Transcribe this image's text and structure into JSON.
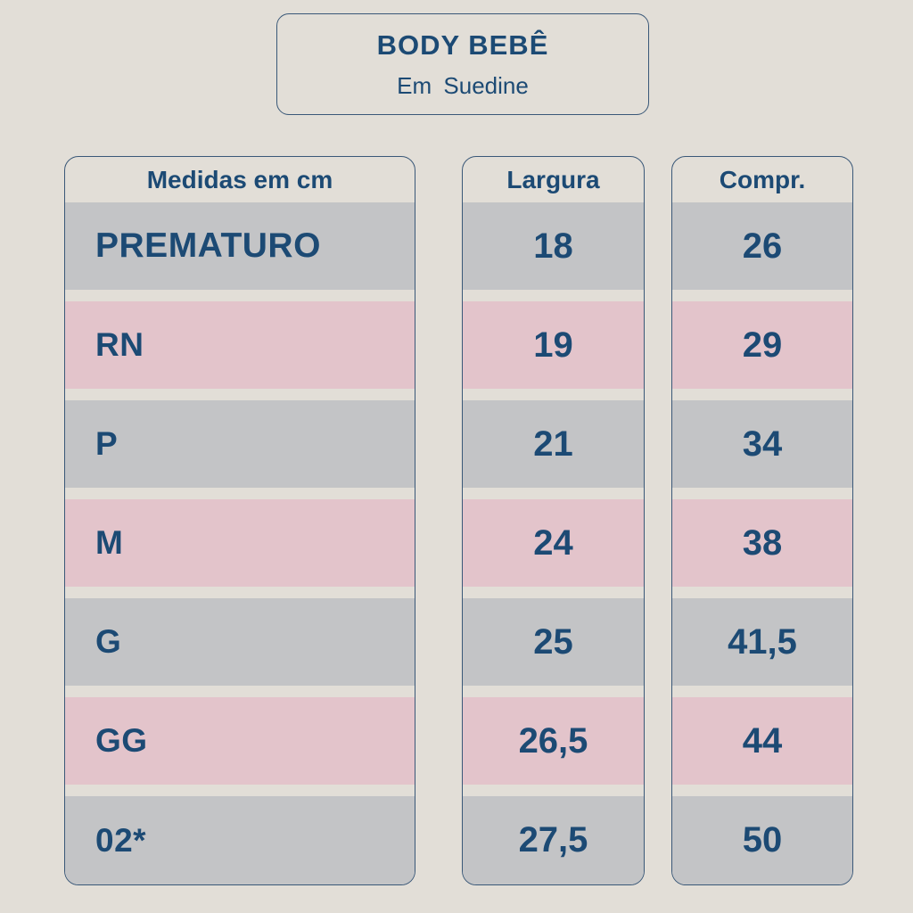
{
  "colors": {
    "background": "#e2ded7",
    "row_gray": "#c3c4c6",
    "row_pink": "#e3c4cb",
    "text_navy": "#1c4a74",
    "border_navy": "#3a5878"
  },
  "title_box": {
    "title": "BODY BEBÊ",
    "subtitle": "Em Suedine"
  },
  "table": {
    "columns": [
      {
        "header": "Medidas em cm",
        "rows": [
          "PREMATURO",
          "RN",
          "P",
          "M",
          "G",
          "GG",
          "02*"
        ]
      },
      {
        "header": "Largura",
        "rows": [
          "18",
          "19",
          "21",
          "24",
          "25",
          "26,5",
          "27,5"
        ]
      },
      {
        "header": "Compr.",
        "rows": [
          "26",
          "29",
          "34",
          "38",
          "41,5",
          "44",
          "50"
        ]
      }
    ]
  },
  "chart_data": {
    "type": "table",
    "title": "BODY BEBÊ",
    "subtitle": "Em Suedine",
    "columns": [
      "Medidas em cm",
      "Largura",
      "Compr."
    ],
    "rows": [
      [
        "PREMATURO",
        18,
        26
      ],
      [
        "RN",
        19,
        29
      ],
      [
        "P",
        21,
        34
      ],
      [
        "M",
        24,
        38
      ],
      [
        "G",
        25,
        41.5
      ],
      [
        "GG",
        26.5,
        44
      ],
      [
        "02*",
        27.5,
        50
      ]
    ],
    "row_stripe_pattern": [
      "gray",
      "pink",
      "gray",
      "pink",
      "gray",
      "pink",
      "gray"
    ],
    "units": "cm"
  }
}
